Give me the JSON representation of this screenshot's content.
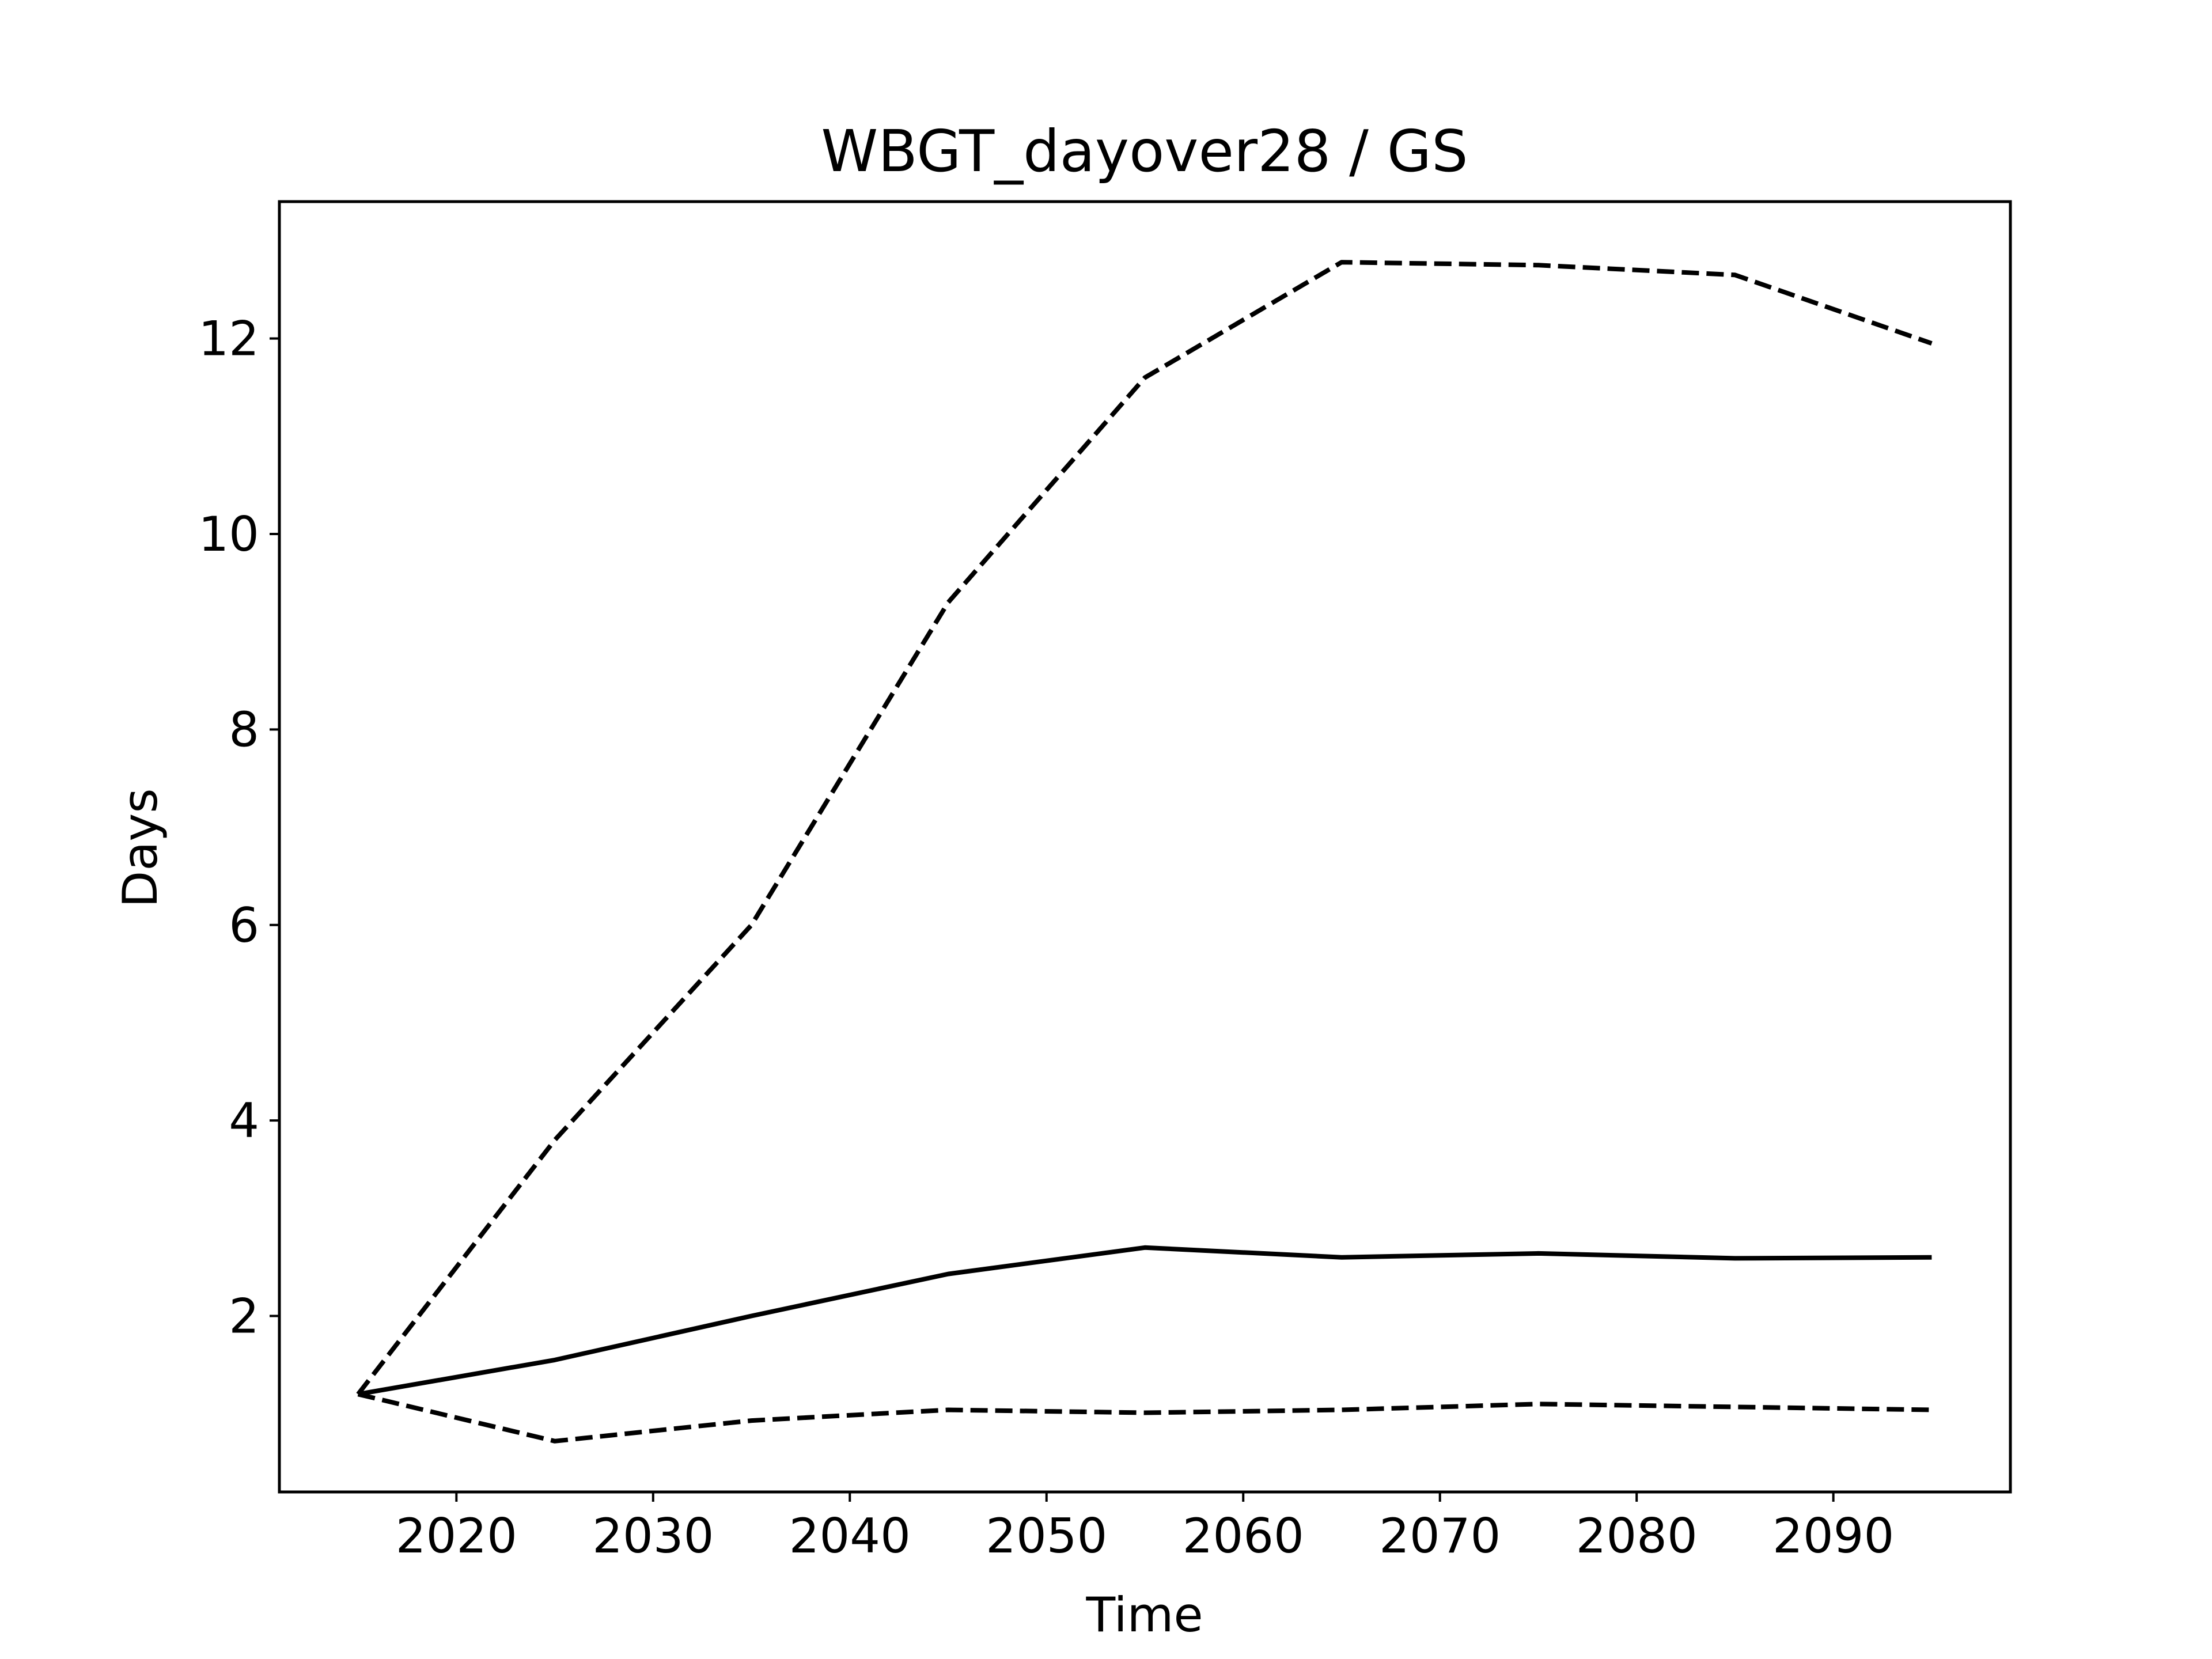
{
  "chart_data": {
    "type": "line",
    "title": "WBGT_dayover28 / GS",
    "xlabel": "Time",
    "ylabel": "Days",
    "xlim": [
      2011,
      2099
    ],
    "ylim": [
      0.2,
      13.4
    ],
    "xticks": [
      2020,
      2030,
      2040,
      2050,
      2060,
      2070,
      2080,
      2090
    ],
    "yticks": [
      2,
      4,
      6,
      8,
      10,
      12
    ],
    "grid": false,
    "x": [
      2015,
      2025,
      2035,
      2045,
      2055,
      2065,
      2075,
      2085,
      2095
    ],
    "series": [
      {
        "style": "dashed",
        "values": [
          1.2,
          3.8,
          6.0,
          9.3,
          11.6,
          12.78,
          12.75,
          12.65,
          11.95
        ]
      },
      {
        "style": "solid",
        "values": [
          1.2,
          1.55,
          2.0,
          2.43,
          2.7,
          2.6,
          2.64,
          2.59,
          2.6
        ]
      },
      {
        "style": "dashed",
        "values": [
          1.2,
          0.72,
          0.93,
          1.04,
          1.01,
          1.04,
          1.1,
          1.07,
          1.04
        ]
      }
    ],
    "colors": {
      "line": "#000000",
      "frame": "#000000",
      "background": "#ffffff"
    }
  }
}
